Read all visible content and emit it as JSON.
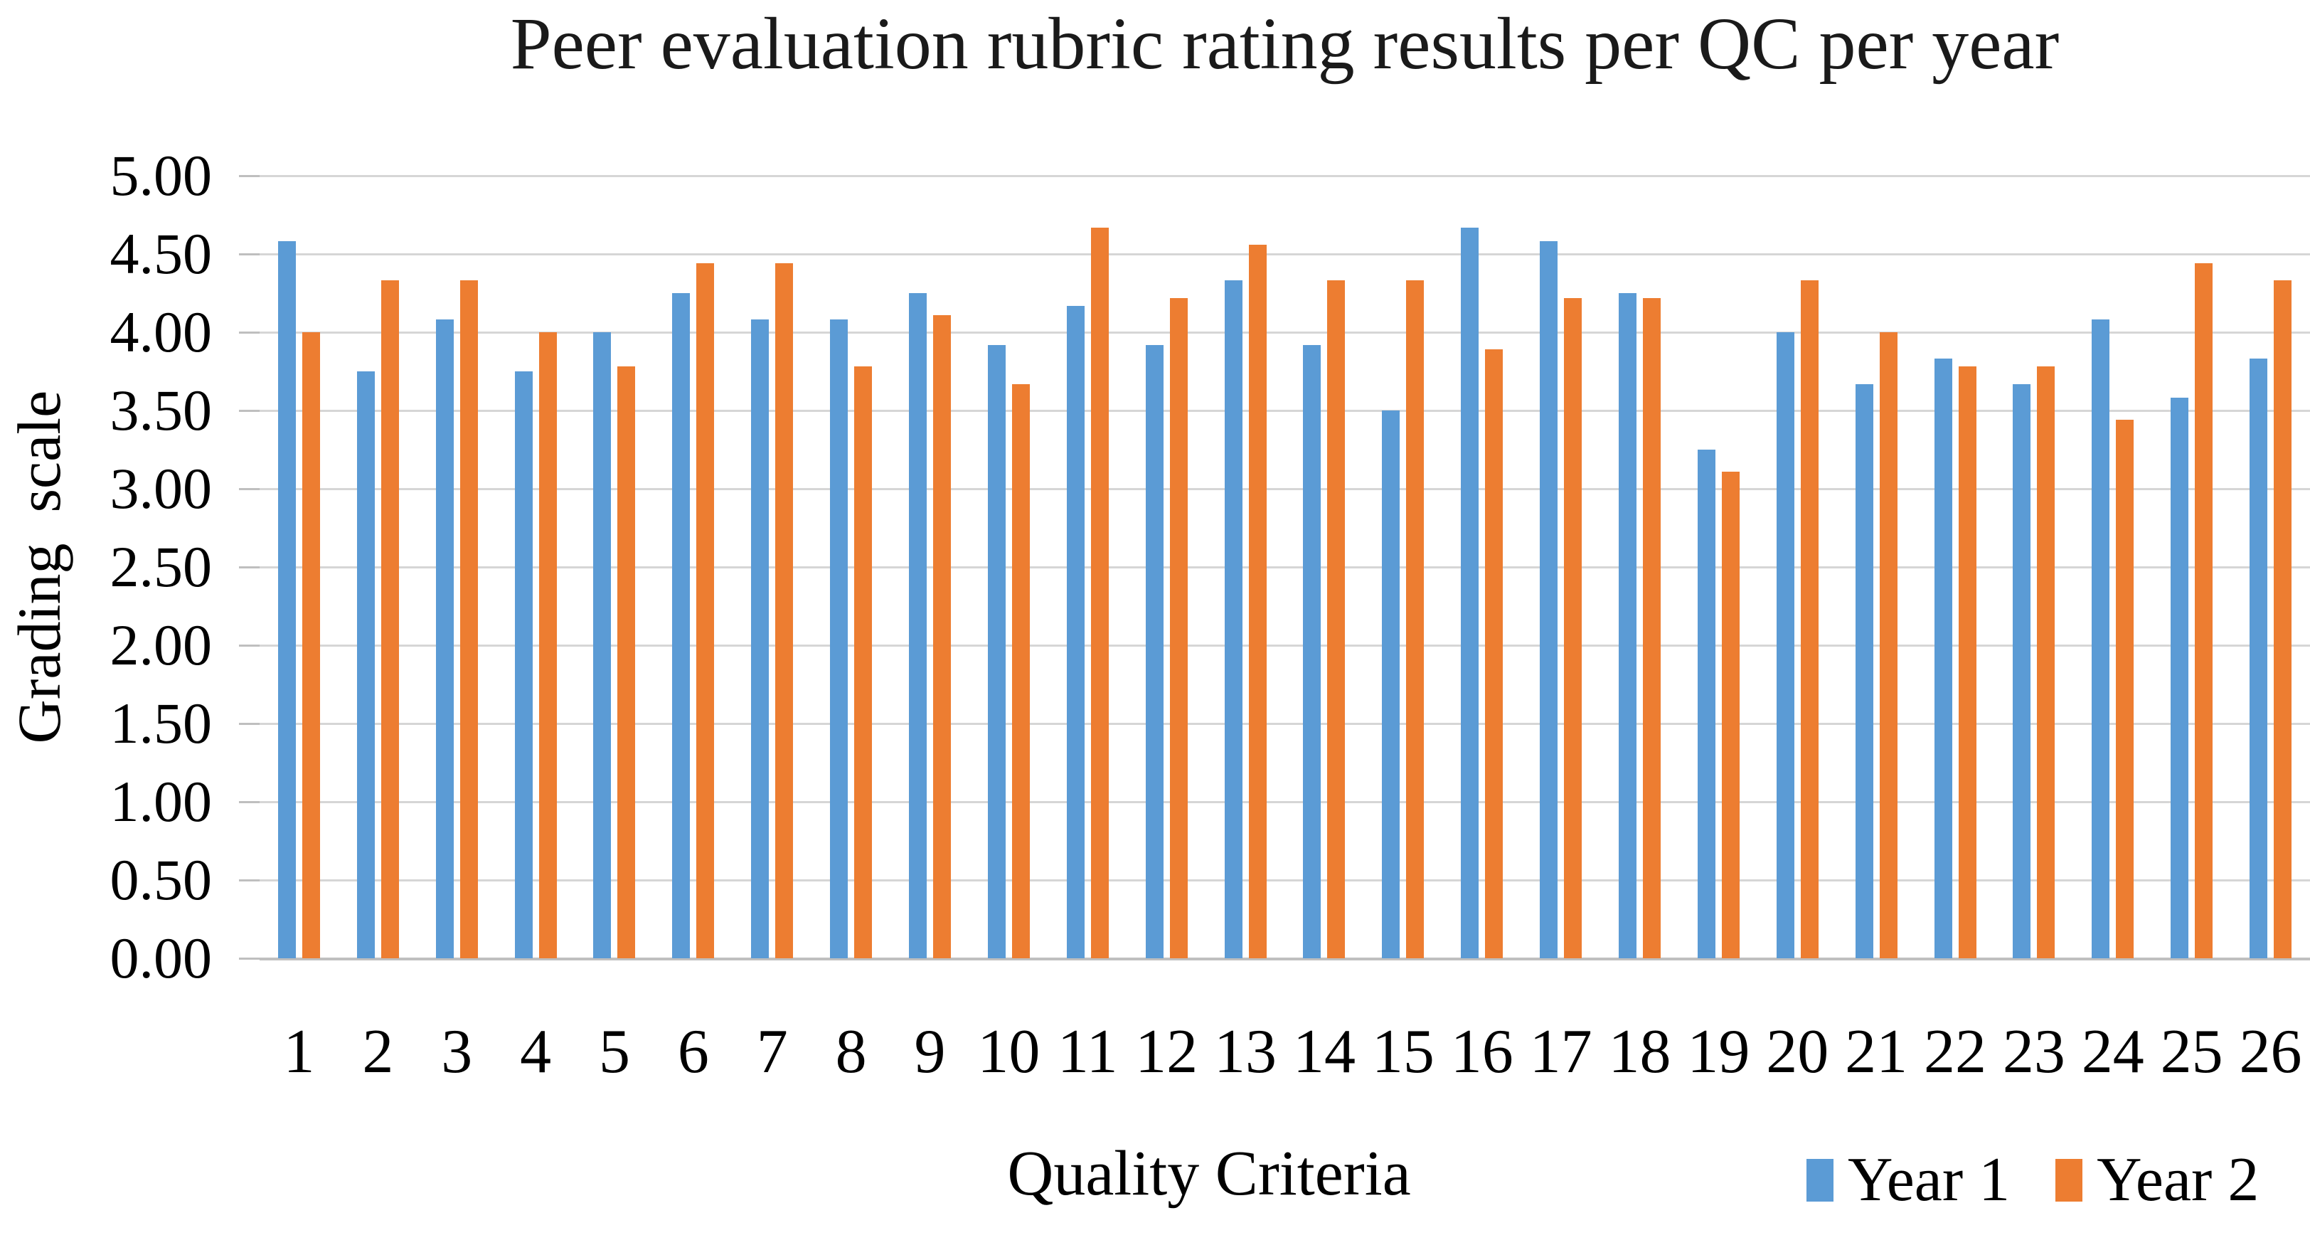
{
  "title": "Peer evaluation rubric rating results per QC per year",
  "chart_data": {
    "type": "bar",
    "title": "Peer evaluation rubric rating results per QC per year",
    "xlabel": "Quality Criteria",
    "ylabel": "Grading  scale",
    "ylim": [
      0,
      5
    ],
    "ytick_step": 0.5,
    "ytick_labels": [
      "5.00",
      "4.50",
      "4.00",
      "3.50",
      "3.00",
      "2.50",
      "2.00",
      "1.50",
      "1.00",
      "0.50",
      "0.00"
    ],
    "grid": true,
    "gridline_color": "#d6d6d6",
    "baseline_color": "#bfbfbf",
    "legend_position": "bottom-right",
    "categories": [
      "1",
      "2",
      "3",
      "4",
      "5",
      "6",
      "7",
      "8",
      "9",
      "10",
      "11",
      "12",
      "13",
      "14",
      "15",
      "16",
      "17",
      "18",
      "19",
      "20",
      "21",
      "22",
      "23",
      "24",
      "25",
      "26"
    ],
    "series": [
      {
        "name": "Year 1",
        "color": "#5B9BD5",
        "values": [
          4.58,
          3.75,
          4.08,
          3.75,
          4.0,
          4.25,
          4.08,
          4.08,
          4.25,
          3.92,
          4.17,
          3.92,
          4.33,
          3.92,
          3.5,
          4.67,
          4.58,
          4.25,
          3.25,
          4.0,
          3.67,
          3.83,
          3.67,
          4.08,
          3.58,
          3.83
        ]
      },
      {
        "name": "Year 2",
        "color": "#ED7D31",
        "values": [
          4.0,
          4.33,
          4.33,
          4.0,
          3.78,
          4.44,
          4.44,
          3.78,
          4.11,
          3.67,
          4.67,
          4.22,
          4.56,
          4.33,
          4.33,
          3.89,
          4.22,
          4.22,
          3.11,
          4.33,
          4.0,
          3.78,
          3.78,
          3.44,
          4.44,
          4.33
        ]
      }
    ]
  }
}
